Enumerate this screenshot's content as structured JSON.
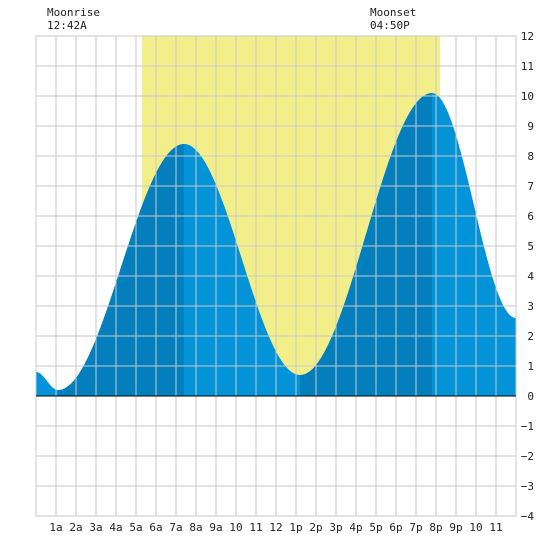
{
  "chart_data": {
    "type": "area",
    "title": "",
    "xlabel": "",
    "ylabel": "",
    "x_range_hours": [
      0,
      24
    ],
    "ylim": [
      -4,
      12
    ],
    "y_ticks": [
      12,
      11,
      10,
      9,
      8,
      7,
      6,
      5,
      4,
      3,
      2,
      1,
      0,
      -1,
      -2,
      -3,
      -4
    ],
    "y_tick_labels": [
      "12",
      "11",
      "10",
      "9",
      "8",
      "7",
      "6",
      "5",
      "4",
      "3",
      "2",
      "1",
      "0",
      "−1",
      "−2",
      "−3",
      "−4"
    ],
    "x_tick_labels": [
      "1a",
      "2a",
      "3a",
      "4a",
      "5a",
      "6a",
      "7a",
      "8a",
      "9a",
      "10",
      "11",
      "12",
      "1p",
      "2p",
      "3p",
      "4p",
      "5p",
      "6p",
      "7p",
      "8p",
      "9p",
      "10",
      "11"
    ],
    "grid": true,
    "daylight_hours": [
      5.3,
      20.2
    ],
    "moon_events": [
      {
        "label": "Moonrise",
        "time": "12:42A",
        "hour": 0.7
      },
      {
        "label": "Moonset",
        "time": "04:50P",
        "hour": 16.83
      }
    ],
    "tide_extremes": [
      {
        "kind": "low",
        "hour": 1.1,
        "height": 0.2
      },
      {
        "kind": "high",
        "hour": 7.4,
        "height": 8.4
      },
      {
        "kind": "low",
        "hour": 13.2,
        "height": 0.7
      },
      {
        "kind": "high",
        "hour": 19.8,
        "height": 10.1
      }
    ],
    "tide_start": {
      "hour": 0,
      "height": 0.8
    },
    "tide_end": {
      "hour": 24,
      "height": 2.6
    },
    "tide_height_series": {
      "x": [
        0,
        1,
        2,
        3,
        4,
        5,
        6,
        7,
        8,
        9,
        10,
        11,
        12,
        13,
        14,
        15,
        16,
        17,
        18,
        19,
        20,
        21,
        22,
        23,
        24
      ],
      "y": [
        0.8,
        0.2,
        0.7,
        2.1,
        4.1,
        6.3,
        7.9,
        8.4,
        8.0,
        6.3,
        4.1,
        2.3,
        1.0,
        0.7,
        1.6,
        3.5,
        5.8,
        8.0,
        9.5,
        10.1,
        9.9,
        8.5,
        6.5,
        4.4,
        2.6
      ]
    },
    "colors": {
      "daylight": "#f2ef8a",
      "tide_falling": "#0393d8",
      "tide_rising": "#037fbd",
      "grid": "#c9c9c9",
      "zero_line": "#000000",
      "plot_background": "#ffffff"
    }
  }
}
